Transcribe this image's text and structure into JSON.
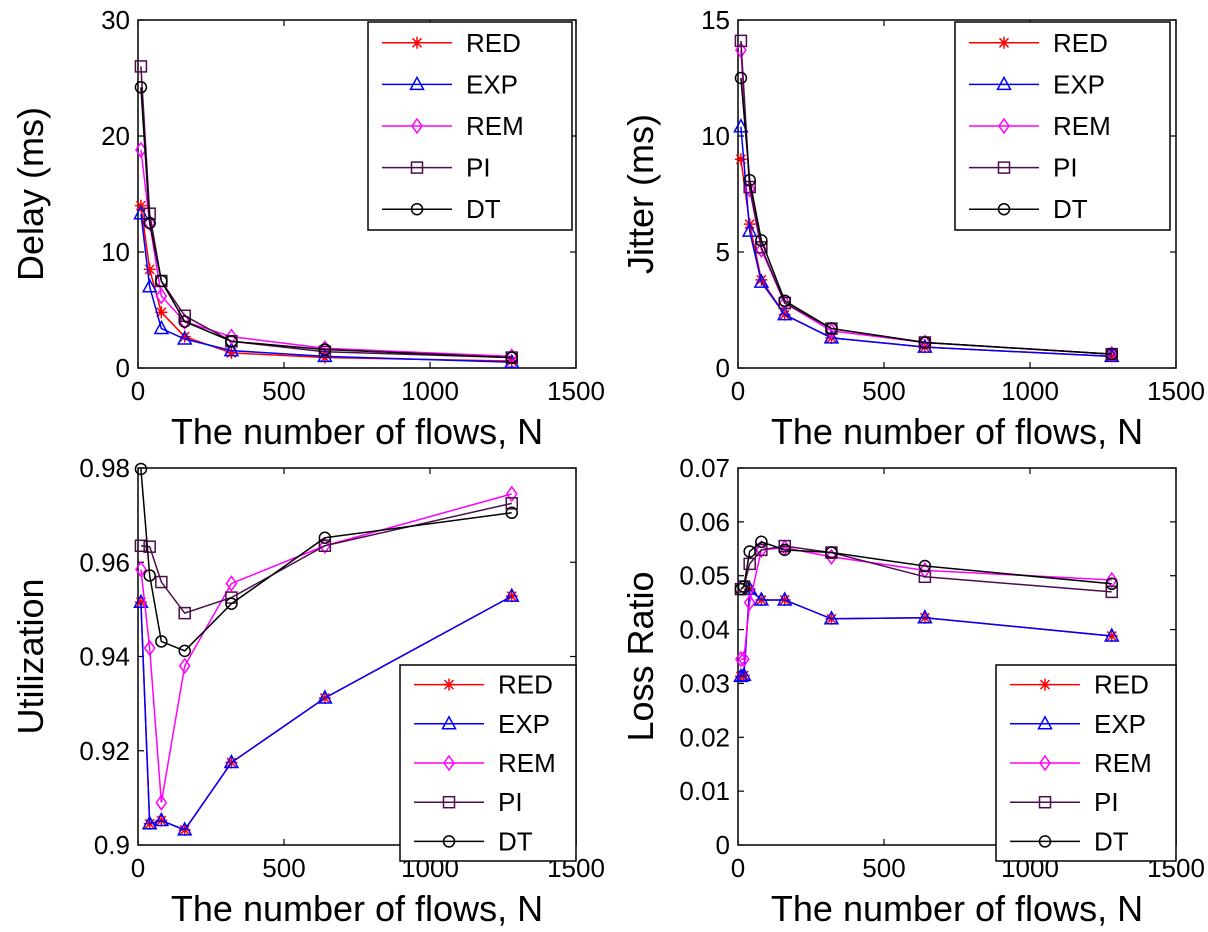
{
  "colors": {
    "RED": "#ff0000",
    "EXP": "#0000ff",
    "REM": "#ff00ff",
    "PI": "#4b0d4b",
    "DT": "#000000"
  },
  "markers": {
    "RED": "asterisk",
    "EXP": "triangle",
    "REM": "diamond",
    "PI": "square",
    "DT": "circle"
  },
  "chart_data": [
    {
      "type": "line",
      "xlabel": "The number of flows, N",
      "ylabel": "Delay (ms)",
      "xlim": [
        0,
        1500
      ],
      "ylim": [
        0,
        30
      ],
      "xticks": [
        "0",
        "500",
        "1000",
        "1500"
      ],
      "yticks": [
        "0",
        "10",
        "20",
        "30"
      ],
      "legend_position": "top-right",
      "x": [
        10,
        40,
        80,
        160,
        320,
        640,
        1280
      ],
      "series": [
        {
          "name": "RED",
          "values": [
            14.0,
            8.5,
            4.8,
            2.7,
            1.3,
            0.9,
            0.6
          ]
        },
        {
          "name": "EXP",
          "values": [
            13.3,
            7.0,
            3.4,
            2.5,
            1.5,
            1.0,
            0.5
          ]
        },
        {
          "name": "REM",
          "values": [
            18.8,
            12.5,
            6.2,
            4.0,
            2.7,
            1.7,
            1.0
          ]
        },
        {
          "name": "PI",
          "values": [
            26.0,
            13.3,
            7.5,
            4.5,
            2.3,
            1.4,
            0.9
          ]
        },
        {
          "name": "DT",
          "values": [
            24.2,
            12.5,
            7.5,
            4.0,
            2.3,
            1.6,
            0.9
          ]
        }
      ]
    },
    {
      "type": "line",
      "xlabel": "The number of flows, N",
      "ylabel": "Jitter (ms)",
      "xlim": [
        0,
        1500
      ],
      "ylim": [
        0,
        15
      ],
      "xticks": [
        "0",
        "500",
        "1000",
        "1500"
      ],
      "yticks": [
        "0",
        "5",
        "10",
        "15"
      ],
      "legend_position": "top-right",
      "x": [
        10,
        40,
        80,
        160,
        320,
        640,
        1280
      ],
      "series": [
        {
          "name": "RED",
          "values": [
            9.0,
            6.2,
            3.8,
            2.3,
            1.3,
            0.9,
            0.5
          ]
        },
        {
          "name": "EXP",
          "values": [
            10.4,
            5.9,
            3.7,
            2.3,
            1.3,
            0.9,
            0.5
          ]
        },
        {
          "name": "REM",
          "values": [
            13.7,
            7.7,
            5.1,
            2.8,
            1.6,
            1.1,
            0.6
          ]
        },
        {
          "name": "PI",
          "values": [
            14.1,
            7.8,
            5.2,
            2.8,
            1.7,
            1.1,
            0.6
          ]
        },
        {
          "name": "DT",
          "values": [
            12.5,
            8.1,
            5.5,
            2.9,
            1.7,
            1.1,
            0.6
          ]
        }
      ]
    },
    {
      "type": "line",
      "xlabel": "The number of flows, N",
      "ylabel": "Utilization",
      "xlim": [
        0,
        1500
      ],
      "ylim": [
        0.9,
        0.98
      ],
      "xticks": [
        "0",
        "500",
        "1000",
        "1500"
      ],
      "yticks": [
        "0.9",
        "0.92",
        "0.94",
        "0.96",
        "0.98"
      ],
      "legend_position": "bottom-right",
      "x": [
        10,
        40,
        80,
        160,
        320,
        640,
        1280
      ],
      "series": [
        {
          "name": "RED",
          "values": [
            0.9515,
            0.9045,
            0.9052,
            0.9032,
            0.9175,
            0.9312,
            0.9528
          ]
        },
        {
          "name": "EXP",
          "values": [
            0.9515,
            0.9045,
            0.9052,
            0.9032,
            0.9175,
            0.9312,
            0.9528
          ]
        },
        {
          "name": "REM",
          "values": [
            0.9585,
            0.9418,
            0.909,
            0.938,
            0.9555,
            0.9635,
            0.9745
          ]
        },
        {
          "name": "PI",
          "values": [
            0.9635,
            0.9633,
            0.9558,
            0.9492,
            0.9525,
            0.9635,
            0.9725
          ]
        },
        {
          "name": "DT",
          "values": [
            0.9798,
            0.9572,
            0.9432,
            0.9412,
            0.9512,
            0.9652,
            0.9705
          ]
        }
      ]
    },
    {
      "type": "line",
      "xlabel": "The number of flows, N",
      "ylabel": "Loss Ratio",
      "xlim": [
        0,
        1500
      ],
      "ylim": [
        0,
        0.07
      ],
      "xticks": [
        "0",
        "500",
        "1000",
        "1500"
      ],
      "yticks": [
        "0",
        "0.01",
        "0.02",
        "0.03",
        "0.04",
        "0.05",
        "0.06",
        "0.07"
      ],
      "legend_position": "bottom-right",
      "x": [
        10,
        20,
        40,
        80,
        160,
        320,
        640,
        1280
      ],
      "series": [
        {
          "name": "RED",
          "values": [
            0.0313,
            0.0315,
            0.0475,
            0.0455,
            0.0455,
            0.042,
            0.0422,
            0.0388
          ]
        },
        {
          "name": "EXP",
          "values": [
            0.0313,
            0.0315,
            0.0475,
            0.0455,
            0.0455,
            0.042,
            0.0422,
            0.0388
          ]
        },
        {
          "name": "REM",
          "values": [
            0.0345,
            0.0345,
            0.045,
            0.0548,
            0.0552,
            0.0535,
            0.051,
            0.0492
          ]
        },
        {
          "name": "PI",
          "values": [
            0.0475,
            0.048,
            0.0522,
            0.0548,
            0.0555,
            0.0543,
            0.0498,
            0.047
          ]
        },
        {
          "name": "DT",
          "values": [
            0.0475,
            0.048,
            0.0545,
            0.0563,
            0.0548,
            0.0543,
            0.0518,
            0.0485
          ]
        }
      ]
    }
  ]
}
